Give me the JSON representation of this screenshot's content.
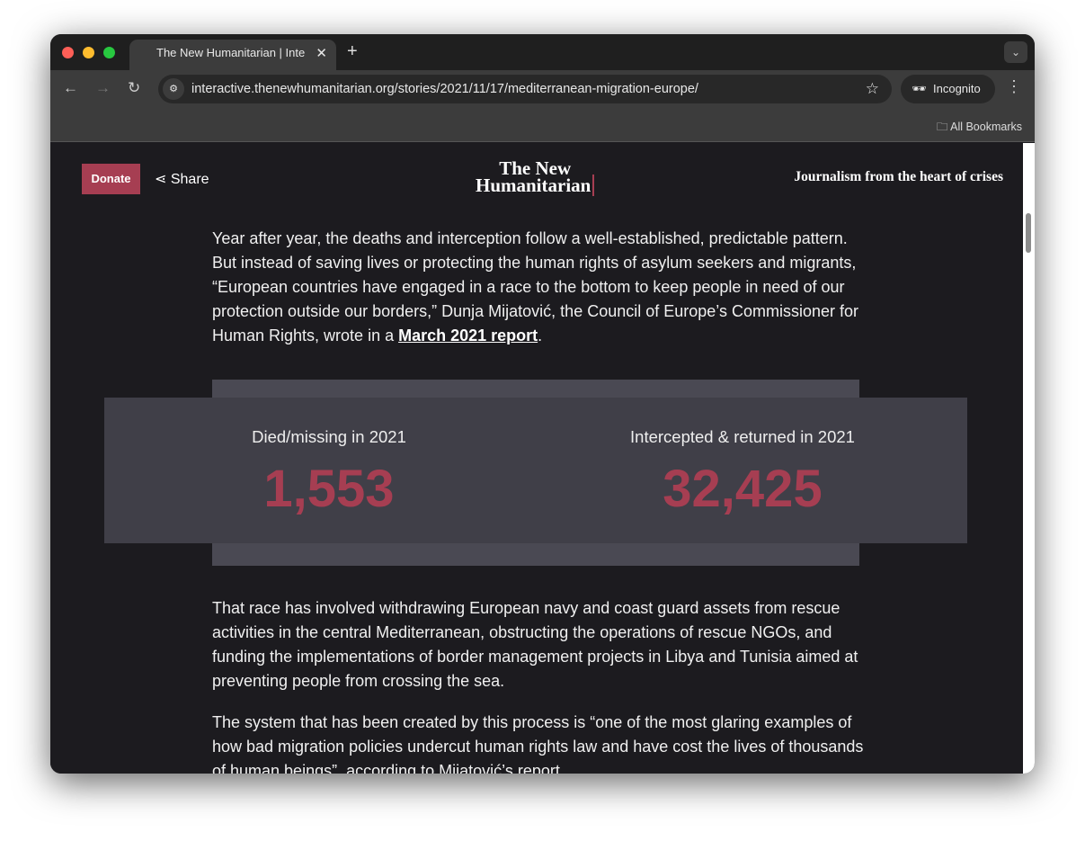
{
  "browser": {
    "tab_title": "The New Humanitarian | Interactive",
    "url": "interactive.thenewhumanitarian.org/stories/2021/11/17/mediterranean-migration-europe/",
    "incognito_label": "Incognito",
    "bookmarks_label": "All Bookmarks"
  },
  "header": {
    "donate": "Donate",
    "share": "Share",
    "logo_line1": "The New",
    "logo_line2": "Humanitarian",
    "tagline": "Journalism from the heart of crises"
  },
  "article": {
    "p1": "Year after year, the deaths and interception follow a well-established, predictable pattern. But instead of saving lives or protecting the human rights of asylum seekers and migrants, “European countries have engaged in a race to the bottom to keep people in need of our protection outside our borders,” Dunja Mijatović, the Council of Europe’s Commissioner for Human Rights, wrote in a ",
    "p1_link": "March 2021 report",
    "p1_end": ".",
    "p2": "That race has involved withdrawing European navy and coast guard assets from rescue activities in the central Mediterranean, obstructing the operations of rescue NGOs, and funding the implementations of border management projects in Libya and Tunisia aimed at preventing people from crossing the sea.",
    "p3": "The system that has been created by this process is “one of the most glaring examples of how bad migration policies undercut human rights law and have cost the lives of thousands of human beings”, according to Mijatović’s report."
  },
  "stats": [
    {
      "label": "Died/missing in 2021",
      "value": "1,553"
    },
    {
      "label": "Intercepted & returned in 2021",
      "value": "32,425"
    }
  ],
  "colors": {
    "accent": "#a63e52",
    "background": "#1c1b1f",
    "stat_panel": "#403f48"
  }
}
